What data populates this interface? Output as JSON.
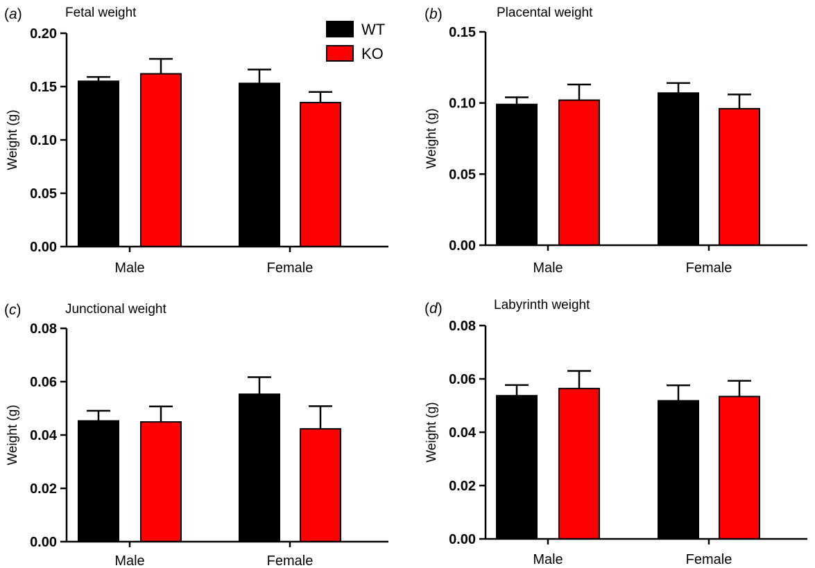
{
  "legend": {
    "entries": [
      {
        "label": "WT",
        "color": "#000000"
      },
      {
        "label": "KO",
        "color": "#ff0000"
      }
    ]
  },
  "chart_data": [
    {
      "type": "bar",
      "panel_label": "(a)",
      "panel_letter": "a",
      "title": "Fetal weight",
      "xlabel": "",
      "ylabel": "Weight (g)",
      "ylim": [
        0,
        0.2
      ],
      "yticks": [
        "0.00",
        "0.05",
        "0.10",
        "0.15",
        "0.20"
      ],
      "ytick_values": [
        0,
        0.05,
        0.1,
        0.15,
        0.2
      ],
      "categories": [
        "Male",
        "Female"
      ],
      "series": [
        {
          "name": "WT",
          "color": "#000000",
          "values": [
            0.155,
            0.153
          ],
          "errors": [
            0.004,
            0.013
          ]
        },
        {
          "name": "KO",
          "color": "#ff0000",
          "values": [
            0.162,
            0.135
          ],
          "errors": [
            0.014,
            0.01
          ]
        }
      ]
    },
    {
      "type": "bar",
      "panel_label": "(b)",
      "panel_letter": "b",
      "title": "Placental weight",
      "xlabel": "",
      "ylabel": "Weight (g)",
      "ylim": [
        0,
        0.15
      ],
      "yticks": [
        "0.00",
        "0.05",
        "0.10",
        "0.15"
      ],
      "ytick_values": [
        0,
        0.05,
        0.1,
        0.15
      ],
      "categories": [
        "Male",
        "Female"
      ],
      "series": [
        {
          "name": "WT",
          "color": "#000000",
          "values": [
            0.099,
            0.107
          ],
          "errors": [
            0.005,
            0.007
          ]
        },
        {
          "name": "KO",
          "color": "#ff0000",
          "values": [
            0.102,
            0.096
          ],
          "errors": [
            0.011,
            0.01
          ]
        }
      ]
    },
    {
      "type": "bar",
      "panel_label": "(c)",
      "panel_letter": "c",
      "title": "Junctional weight",
      "xlabel": "",
      "ylabel": "Weight (g)",
      "ylim": [
        0,
        0.08
      ],
      "yticks": [
        "0.00",
        "0.02",
        "0.04",
        "0.06",
        "0.08"
      ],
      "ytick_values": [
        0,
        0.02,
        0.04,
        0.06,
        0.08
      ],
      "categories": [
        "Male",
        "Female"
      ],
      "series": [
        {
          "name": "WT",
          "color": "#000000",
          "values": [
            0.0453,
            0.0553
          ],
          "errors": [
            0.0038,
            0.0064
          ]
        },
        {
          "name": "KO",
          "color": "#ff0000",
          "values": [
            0.0449,
            0.0423
          ],
          "errors": [
            0.0058,
            0.0085
          ]
        }
      ]
    },
    {
      "type": "bar",
      "panel_label": "(d)",
      "panel_letter": "d",
      "title": "Labyrinth weight",
      "xlabel": "",
      "ylabel": "Weight (g)",
      "ylim": [
        0,
        0.08
      ],
      "yticks": [
        "0.00",
        "0.02",
        "0.04",
        "0.06",
        "0.08"
      ],
      "ytick_values": [
        0,
        0.02,
        0.04,
        0.06,
        0.08
      ],
      "categories": [
        "Male",
        "Female"
      ],
      "series": [
        {
          "name": "WT",
          "color": "#000000",
          "values": [
            0.0537,
            0.0518
          ],
          "errors": [
            0.004,
            0.0058
          ]
        },
        {
          "name": "KO",
          "color": "#ff0000",
          "values": [
            0.0564,
            0.0534
          ],
          "errors": [
            0.0066,
            0.0059
          ]
        }
      ]
    }
  ]
}
